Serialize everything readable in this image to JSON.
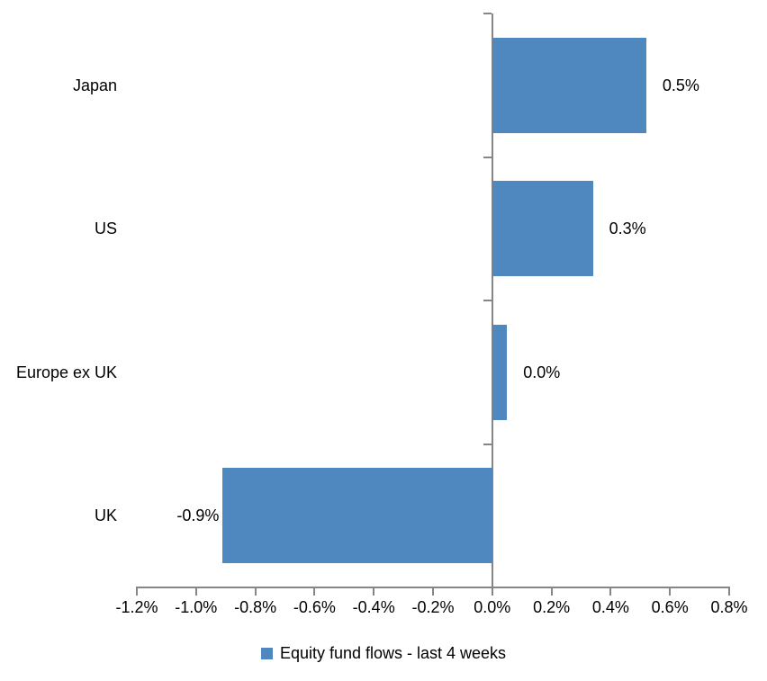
{
  "chart_data": {
    "type": "bar",
    "orientation": "horizontal",
    "title": "",
    "xlabel": "",
    "ylabel": "",
    "categories": [
      "Japan",
      "US",
      "Europe ex UK",
      "UK"
    ],
    "values": [
      0.5,
      0.3,
      0.0,
      -0.9
    ],
    "values_precise_pct": [
      0.52,
      0.34,
      0.05,
      -0.91
    ],
    "value_labels": [
      "0.5%",
      "0.3%",
      "0.0%",
      "-0.9%"
    ],
    "xlim": [
      -1.2,
      0.8
    ],
    "x_tick_step": 0.2,
    "x_tick_labels": [
      "-1.2%",
      "-1.0%",
      "-0.8%",
      "-0.6%",
      "-0.4%",
      "-0.2%",
      "0.0%",
      "0.2%",
      "0.4%",
      "0.6%",
      "0.8%"
    ],
    "grid": false,
    "legend": {
      "position": "bottom-center",
      "entries": [
        {
          "label": "Equity fund flows - last 4 weeks",
          "color": "#4E88BE"
        }
      ]
    },
    "colors": {
      "bar": "#4E88BE",
      "axis": "#868686",
      "text": "#000000",
      "background": "#FFFFFF"
    }
  }
}
